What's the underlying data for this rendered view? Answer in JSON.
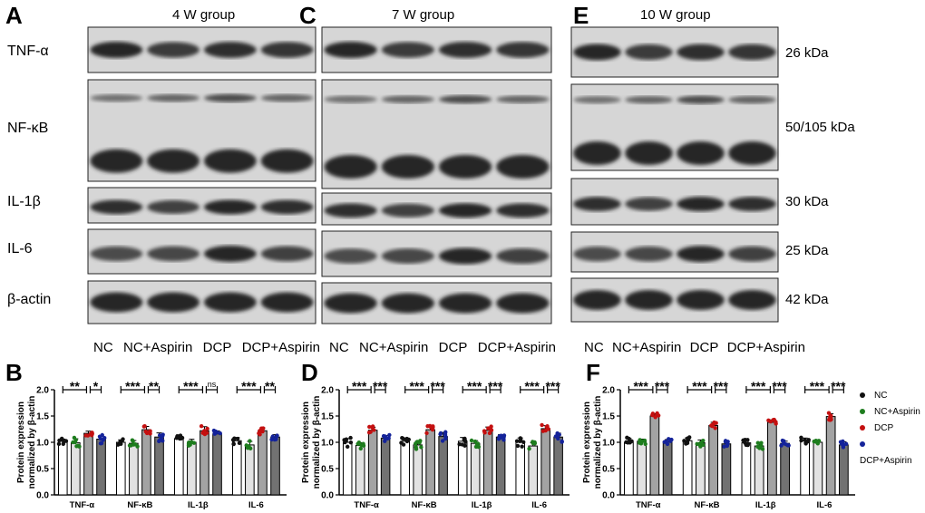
{
  "panels": {
    "A": "A",
    "B": "B",
    "C": "C",
    "D": "D",
    "E": "E",
    "F": "F"
  },
  "blots": {
    "groups": [
      "4 W group",
      "7 W group",
      "10 W group"
    ],
    "rows": [
      "TNF-α",
      "NF-κB",
      "IL-1β",
      "IL-6",
      "β-actin"
    ],
    "kda": [
      "26 kDa",
      "50/105 kDa",
      "30 kDa",
      "25 kDa",
      "42 kDa"
    ],
    "lanes": [
      "NC",
      "NC+Aspirin",
      "DCP",
      "DCP+Aspirin"
    ]
  },
  "legend": {
    "items": [
      {
        "label": "NC",
        "dot_color": "#111111",
        "bar_fill": "#ffffff"
      },
      {
        "label": "NC+Aspirin",
        "dot_color": "#1e7d1e",
        "bar_fill": "#e2e2e2"
      },
      {
        "label": "DCP",
        "dot_color": "#c41010",
        "bar_fill": "#a3a3a3"
      },
      {
        "label": "DCP+Aspirin",
        "dot_color": "#14239a",
        "bar_fill": "#727272"
      }
    ]
  },
  "chart_data": [
    {
      "panel": "B",
      "type": "bar",
      "ylabel": [
        "Protein expression",
        "normalized by β-actin"
      ],
      "ylim": [
        0,
        2.0
      ],
      "yticks": [
        "0.0",
        "0.5",
        "1.0",
        "1.5",
        "2.0"
      ],
      "categories": [
        "TNF-α",
        "NF-κB",
        "IL-1β",
        "IL-6"
      ],
      "series": [
        {
          "name": "NC",
          "values": [
            1.02,
            1.0,
            1.07,
            1.03
          ]
        },
        {
          "name": "NC+Aspirin",
          "values": [
            0.99,
            0.98,
            1.0,
            0.95
          ]
        },
        {
          "name": "DCP",
          "values": [
            1.17,
            1.24,
            1.22,
            1.22
          ]
        },
        {
          "name": "DCP+Aspirin",
          "values": [
            1.06,
            1.1,
            1.16,
            1.1
          ]
        }
      ],
      "significance": [
        [
          "**",
          "*"
        ],
        [
          "***",
          "**"
        ],
        [
          "***",
          "ns"
        ],
        [
          "***",
          "**"
        ]
      ]
    },
    {
      "panel": "D",
      "type": "bar",
      "ylabel": [
        "Protein expression",
        "normalized by β-actin"
      ],
      "ylim": [
        0,
        2.0
      ],
      "yticks": [
        "0.0",
        "0.5",
        "1.0",
        "1.5",
        "2.0"
      ],
      "categories": [
        "TNF-α",
        "NF-κB",
        "IL-1β",
        "IL-6"
      ],
      "series": [
        {
          "name": "NC",
          "values": [
            1.0,
            1.02,
            1.02,
            1.01
          ]
        },
        {
          "name": "NC+Aspirin",
          "values": [
            0.94,
            0.95,
            0.98,
            0.93
          ]
        },
        {
          "name": "DCP",
          "values": [
            1.23,
            1.24,
            1.23,
            1.26
          ]
        },
        {
          "name": "DCP+Aspirin",
          "values": [
            1.08,
            1.11,
            1.1,
            1.1
          ]
        }
      ],
      "significance": [
        [
          "***",
          "***"
        ],
        [
          "***",
          "***"
        ],
        [
          "***",
          "***"
        ],
        [
          "***",
          "***"
        ]
      ]
    },
    {
      "panel": "F",
      "type": "bar",
      "ylabel": [
        "Protein expression",
        "normalized by β-actin"
      ],
      "ylim": [
        0,
        2.0
      ],
      "yticks": [
        "0.0",
        "0.5",
        "1.0",
        "1.5",
        "2.0"
      ],
      "categories": [
        "TNF-α",
        "NF-κB",
        "IL-1β",
        "IL-6"
      ],
      "series": [
        {
          "name": "NC",
          "values": [
            1.0,
            1.03,
            0.99,
            1.03
          ]
        },
        {
          "name": "NC+Aspirin",
          "values": [
            1.02,
            0.99,
            0.93,
            1.0
          ]
        },
        {
          "name": "DCP",
          "values": [
            1.5,
            1.32,
            1.38,
            1.49
          ]
        },
        {
          "name": "DCP+Aspirin",
          "values": [
            1.01,
            0.97,
            0.98,
            0.95
          ]
        }
      ],
      "significance": [
        [
          "***",
          "***"
        ],
        [
          "***",
          "***"
        ],
        [
          "***",
          "***"
        ],
        [
          "***",
          "***"
        ]
      ],
      "legend": "right"
    }
  ]
}
